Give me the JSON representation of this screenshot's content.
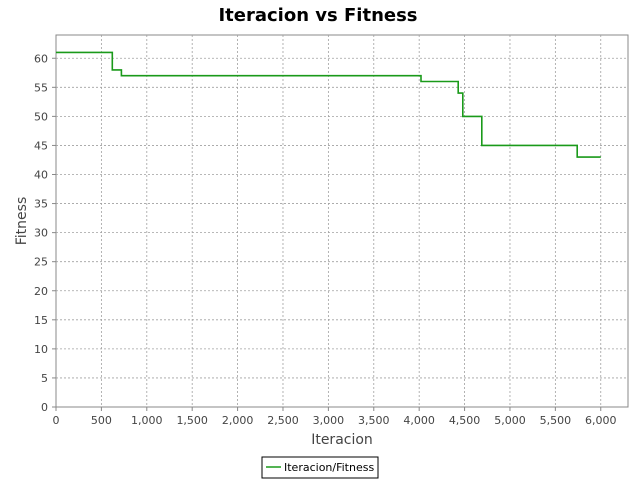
{
  "chart_data": {
    "type": "line",
    "title": "Iteracion vs Fitness",
    "xlabel": "Iteracion",
    "ylabel": "Fitness",
    "xlim": [
      0,
      6300
    ],
    "ylim": [
      0,
      64
    ],
    "x_ticks": [
      0,
      500,
      1000,
      1500,
      2000,
      2500,
      3000,
      3500,
      4000,
      4500,
      5000,
      5500,
      6000
    ],
    "x_tick_labels": [
      "0",
      "500",
      "1,000",
      "1,500",
      "2,000",
      "2,500",
      "3,000",
      "3,500",
      "4,000",
      "4,500",
      "5,000",
      "5,500",
      "6,000"
    ],
    "y_ticks": [
      0,
      5,
      10,
      15,
      20,
      25,
      30,
      35,
      40,
      45,
      50,
      55,
      60
    ],
    "y_tick_labels": [
      "0",
      "5",
      "10",
      "15",
      "20",
      "25",
      "30",
      "35",
      "40",
      "45",
      "50",
      "55",
      "60"
    ],
    "grid": true,
    "legend_position": "bottom-center",
    "series": [
      {
        "name": "Iteracion/Fitness",
        "color": "#1a9a1a",
        "x": [
          0,
          620,
          620,
          720,
          720,
          4020,
          4020,
          4430,
          4430,
          4480,
          4480,
          4690,
          4690,
          5740,
          5740,
          6000
        ],
        "y": [
          61,
          61,
          58,
          58,
          57,
          57,
          56,
          56,
          54,
          54,
          50,
          50,
          45,
          45,
          43,
          43
        ]
      }
    ]
  }
}
